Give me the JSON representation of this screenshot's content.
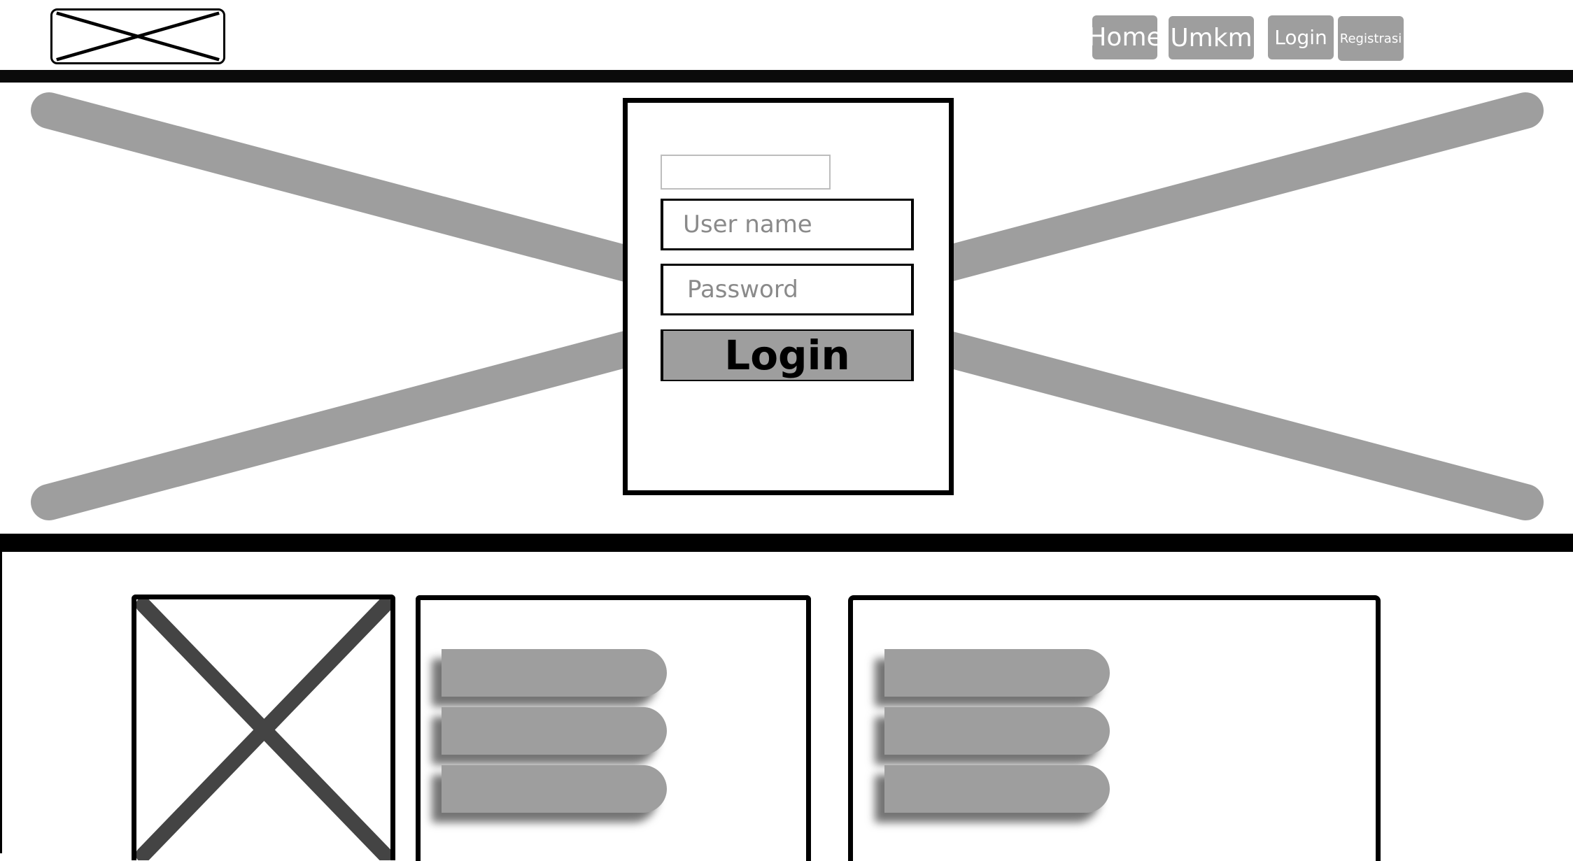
{
  "header": {
    "logo_icon": "image-placeholder-icon",
    "nav": {
      "home_label": "Home",
      "umkm_label": "Umkm",
      "login_label": "Login",
      "register_label": "Registrasi"
    }
  },
  "hero": {
    "background_icon": "image-placeholder-icon",
    "login_form": {
      "username_placeholder": "User name",
      "password_placeholder": "Password",
      "submit_label": "Login"
    }
  },
  "content": {
    "image_panel_icon": "image-placeholder-icon",
    "middle_panel_icon": "list-icon",
    "right_panel_icon": "list-icon"
  },
  "colors": {
    "placeholder_gray": "#9e9e9e",
    "border_black": "#000000",
    "nav_text": "#ffffff"
  }
}
